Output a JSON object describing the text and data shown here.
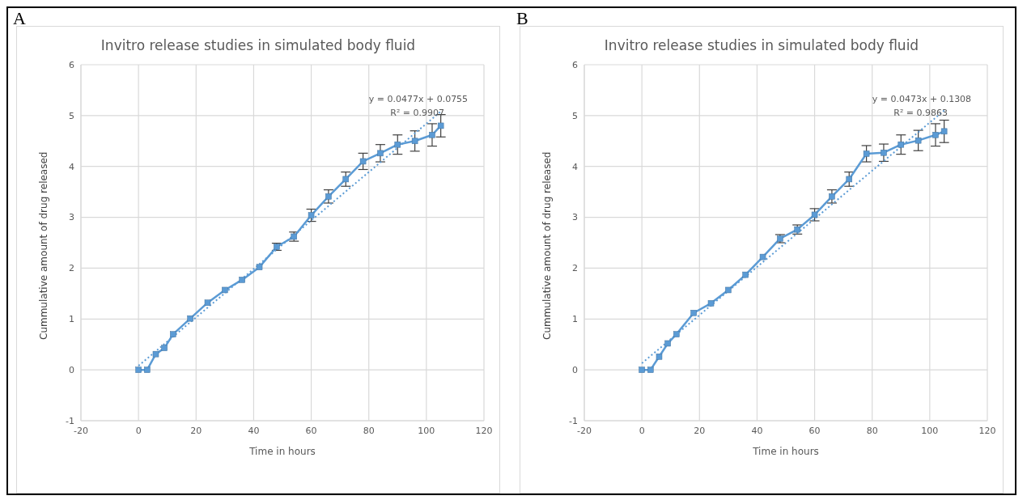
{
  "chart_data": [
    {
      "type": "line",
      "title": "Invitro release studies in simulated body fluid",
      "xlabel": "Time in hours",
      "ylabel": "Cummulative amount of drug released",
      "annotations": [
        "A",
        "y = 0.0477x + 0.0755",
        "R² = 0.9907"
      ],
      "xlim": [
        -20,
        120
      ],
      "xticks": [
        -20,
        0,
        20,
        40,
        60,
        80,
        100,
        120
      ],
      "ylim": [
        -1,
        6
      ],
      "yticks": [
        -1,
        0,
        1,
        2,
        3,
        4,
        5,
        6
      ],
      "grid": true,
      "series": [
        {
          "color": "#5b9bd5",
          "marker": "square",
          "x": [
            0,
            3,
            6,
            9,
            12,
            18,
            24,
            30,
            36,
            42,
            48,
            54,
            60,
            66,
            72,
            78,
            84,
            90,
            96,
            102,
            105
          ],
          "values": [
            0,
            0,
            0.31,
            0.43,
            0.7,
            1.01,
            1.32,
            1.57,
            1.77,
            2.02,
            2.42,
            2.62,
            3.04,
            3.41,
            3.75,
            4.1,
            4.26,
            4.43,
            4.5,
            4.62,
            4.8
          ],
          "errors": [
            null,
            null,
            null,
            null,
            null,
            null,
            null,
            null,
            null,
            null,
            0.07,
            0.09,
            0.12,
            0.13,
            0.14,
            0.16,
            0.17,
            0.19,
            0.2,
            0.22,
            0.22
          ]
        },
        {
          "color": "#5b9bd5",
          "marker": "none",
          "line_style": "dotted",
          "x": [
            0,
            105
          ],
          "values": [
            0.08,
            5.08
          ]
        }
      ]
    },
    {
      "type": "line",
      "title": "Invitro release studies in simulated body fluid",
      "xlabel": "Time in hours",
      "ylabel": "Cummulative amount of drug released",
      "annotations": [
        "B",
        "y = 0.0473x + 0.1308",
        "R² = 0.9863"
      ],
      "xlim": [
        -20,
        120
      ],
      "xticks": [
        -20,
        0,
        20,
        40,
        60,
        80,
        100,
        120
      ],
      "ylim": [
        -1,
        6
      ],
      "yticks": [
        -1,
        0,
        1,
        2,
        3,
        4,
        5,
        6
      ],
      "grid": true,
      "series": [
        {
          "color": "#5b9bd5",
          "marker": "square",
          "x": [
            0,
            3,
            6,
            9,
            12,
            18,
            24,
            30,
            36,
            42,
            48,
            54,
            60,
            66,
            72,
            78,
            84,
            90,
            96,
            102,
            105
          ],
          "values": [
            0,
            0,
            0.26,
            0.52,
            0.7,
            1.12,
            1.31,
            1.57,
            1.87,
            2.22,
            2.58,
            2.76,
            3.05,
            3.41,
            3.75,
            4.25,
            4.27,
            4.43,
            4.51,
            4.62,
            4.69
          ],
          "errors": [
            null,
            null,
            null,
            null,
            null,
            null,
            null,
            null,
            null,
            null,
            0.08,
            0.09,
            0.12,
            0.13,
            0.14,
            0.16,
            0.17,
            0.19,
            0.2,
            0.22,
            0.22
          ]
        },
        {
          "color": "#5b9bd5",
          "marker": "none",
          "line_style": "dotted",
          "x": [
            0,
            105
          ],
          "values": [
            0.13,
            5.1
          ]
        }
      ]
    }
  ]
}
